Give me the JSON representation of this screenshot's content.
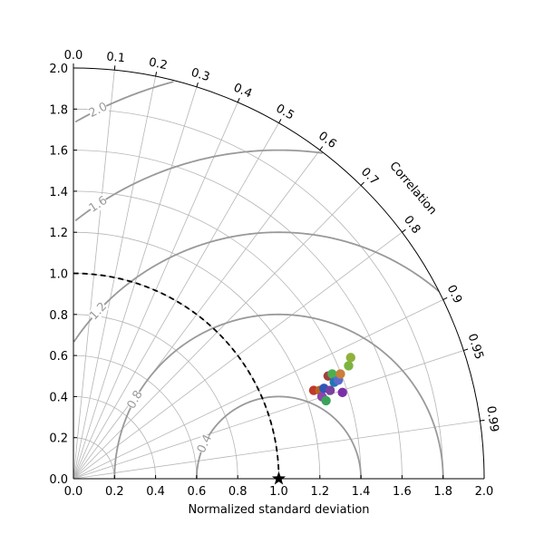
{
  "chart_data": {
    "type": "scatter",
    "subtype": "taylor-diagram",
    "xlabel": "Normalized standard deviation",
    "arc_label": "Correlation",
    "std_range": [
      0,
      2.0
    ],
    "std_ticks": [
      0.0,
      0.2,
      0.4,
      0.6,
      0.8,
      1.0,
      1.2,
      1.4,
      1.6,
      1.8,
      2.0
    ],
    "std_tick_labels": [
      "0.0",
      "0.2",
      "0.4",
      "0.6",
      "0.8",
      "1.0",
      "1.2",
      "1.4",
      "1.6",
      "1.8",
      "2.0"
    ],
    "correlation_ticks": [
      0.0,
      0.1,
      0.2,
      0.3,
      0.4,
      0.5,
      0.6,
      0.7,
      0.8,
      0.9,
      0.95,
      0.99
    ],
    "correlation_tick_labels": [
      "0.0",
      "0.1",
      "0.2",
      "0.3",
      "0.4",
      "0.5",
      "0.6",
      "0.7",
      "0.8",
      "0.9",
      "0.95",
      "0.99"
    ],
    "rms_contours": [
      0.4,
      0.8,
      1.2,
      1.6,
      2.0
    ],
    "rms_contour_labels": [
      {
        "text": "0.4",
        "value": 0.4
      },
      {
        "text": "0.8",
        "value": 0.8
      },
      {
        "text": "1.2",
        "value": 1.2
      },
      {
        "text": "1.6",
        "value": 1.6
      },
      {
        "text": "2.0",
        "value": 2.0
      }
    ],
    "reference": {
      "std": 1.0,
      "correlation": 1.0,
      "marker": "star"
    },
    "reference_arc_std": 1.0,
    "grid": true,
    "points": [
      {
        "x": 1.17,
        "y": 0.43,
        "color": "#c0392b"
      },
      {
        "x": 1.2,
        "y": 0.43,
        "color": "#b5651d"
      },
      {
        "x": 1.21,
        "y": 0.4,
        "color": "#8e44ad"
      },
      {
        "x": 1.22,
        "y": 0.44,
        "color": "#2f55b8"
      },
      {
        "x": 1.23,
        "y": 0.38,
        "color": "#3aa35a"
      },
      {
        "x": 1.24,
        "y": 0.5,
        "color": "#a04040"
      },
      {
        "x": 1.26,
        "y": 0.51,
        "color": "#4caf50"
      },
      {
        "x": 1.25,
        "y": 0.43,
        "color": "#7b3fa0"
      },
      {
        "x": 1.27,
        "y": 0.47,
        "color": "#1f77b4"
      },
      {
        "x": 1.29,
        "y": 0.48,
        "color": "#5b6bd0"
      },
      {
        "x": 1.3,
        "y": 0.51,
        "color": "#c8803a"
      },
      {
        "x": 1.31,
        "y": 0.42,
        "color": "#7a2fa8"
      },
      {
        "x": 1.34,
        "y": 0.55,
        "color": "#7cb342"
      },
      {
        "x": 1.35,
        "y": 0.59,
        "color": "#8fb23a"
      }
    ]
  }
}
